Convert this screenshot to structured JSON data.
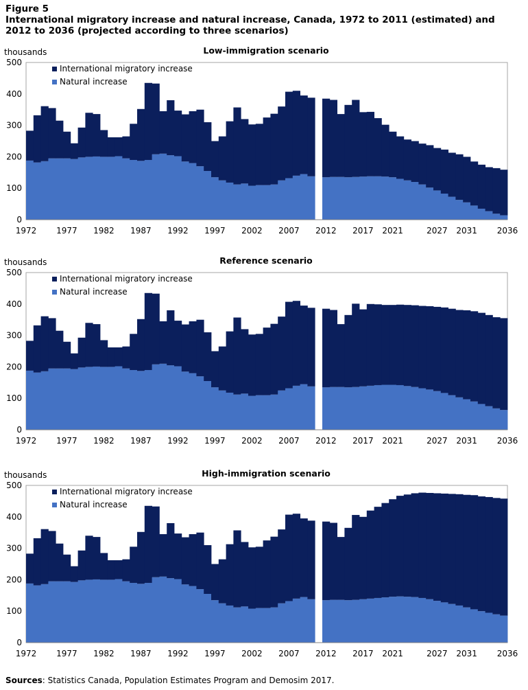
{
  "figure_label": "Figure 5",
  "title": "International migratory increase and natural increase, Canada, 1972 to 2011 (estimated) and 2012 to 2036 (projected according to three scenarios)",
  "source_label": "Sources",
  "source_text": ": Statistics Canada, Population Estimates Program and Demosim 2017.",
  "colors": {
    "natural": "#4472c4",
    "migratory": "#0b1f5c",
    "plot_border": "#a6a6a6",
    "gridline": "#d9d9d9"
  },
  "chart_data": [
    {
      "type": "area",
      "title": "Low-immigration scenario",
      "ylabel": "thousands",
      "ylim": [
        0,
        500
      ],
      "yticks": [
        0,
        100,
        200,
        300,
        400,
        500
      ],
      "xticks": [
        "1972",
        "1977",
        "1982",
        "1987",
        "1992",
        "1997",
        "2002",
        "2007",
        "2012",
        "2017",
        "2021",
        "2027",
        "2031",
        "2036"
      ],
      "legend_position": "top-left",
      "gap_after_year": 2011,
      "x": [
        1972,
        1973,
        1974,
        1975,
        1976,
        1977,
        1978,
        1979,
        1980,
        1981,
        1982,
        1983,
        1984,
        1985,
        1986,
        1987,
        1988,
        1989,
        1990,
        1991,
        1992,
        1993,
        1994,
        1995,
        1996,
        1997,
        1998,
        1999,
        2000,
        2001,
        2002,
        2003,
        2004,
        2005,
        2006,
        2007,
        2008,
        2009,
        2010,
        2011,
        2012,
        2013,
        2014,
        2015,
        2016,
        2017,
        2018,
        2019,
        2020,
        2021,
        2022,
        2023,
        2024,
        2025,
        2026,
        2027,
        2028,
        2029,
        2030,
        2031,
        2032,
        2033,
        2034,
        2035,
        2036
      ],
      "series": [
        {
          "name": "International migratory increase",
          "values": [
            95,
            150,
            175,
            160,
            120,
            85,
            50,
            95,
            140,
            135,
            85,
            62,
            60,
            70,
            115,
            165,
            245,
            225,
            135,
            175,
            145,
            150,
            165,
            180,
            155,
            115,
            140,
            195,
            245,
            205,
            195,
            195,
            215,
            225,
            235,
            275,
            270,
            250,
            250,
            null,
            250,
            245,
            200,
            230,
            245,
            205,
            205,
            185,
            165,
            145,
            135,
            130,
            130,
            130,
            135,
            135,
            140,
            140,
            145,
            145,
            140,
            140,
            140,
            145,
            145
          ]
        },
        {
          "name": "Natural increase",
          "values": [
            188,
            182,
            186,
            195,
            195,
            195,
            193,
            198,
            200,
            201,
            200,
            200,
            202,
            195,
            190,
            187,
            190,
            208,
            210,
            205,
            202,
            185,
            180,
            170,
            155,
            135,
            125,
            118,
            112,
            115,
            108,
            110,
            110,
            112,
            125,
            132,
            140,
            145,
            138,
            null,
            135,
            136,
            136,
            135,
            136,
            137,
            138,
            138,
            137,
            135,
            130,
            125,
            120,
            112,
            102,
            93,
            83,
            73,
            63,
            55,
            45,
            35,
            27,
            19,
            14
          ]
        }
      ]
    },
    {
      "type": "area",
      "title": "Reference scenario",
      "ylabel": "thousands",
      "ylim": [
        0,
        500
      ],
      "yticks": [
        0,
        100,
        200,
        300,
        400,
        500
      ],
      "xticks": [
        "1972",
        "1977",
        "1982",
        "1987",
        "1992",
        "1997",
        "2002",
        "2007",
        "2012",
        "2017",
        "2021",
        "2027",
        "2031",
        "2036"
      ],
      "legend_position": "top-left",
      "gap_after_year": 2011,
      "x": [
        1972,
        1973,
        1974,
        1975,
        1976,
        1977,
        1978,
        1979,
        1980,
        1981,
        1982,
        1983,
        1984,
        1985,
        1986,
        1987,
        1988,
        1989,
        1990,
        1991,
        1992,
        1993,
        1994,
        1995,
        1996,
        1997,
        1998,
        1999,
        2000,
        2001,
        2002,
        2003,
        2004,
        2005,
        2006,
        2007,
        2008,
        2009,
        2010,
        2011,
        2012,
        2013,
        2014,
        2015,
        2016,
        2017,
        2018,
        2019,
        2020,
        2021,
        2022,
        2023,
        2024,
        2025,
        2026,
        2027,
        2028,
        2029,
        2030,
        2031,
        2032,
        2033,
        2034,
        2035,
        2036
      ],
      "series": [
        {
          "name": "International migratory increase",
          "values": [
            95,
            150,
            175,
            160,
            120,
            85,
            50,
            95,
            140,
            135,
            85,
            62,
            60,
            70,
            115,
            165,
            245,
            225,
            135,
            175,
            145,
            150,
            165,
            180,
            155,
            115,
            140,
            195,
            245,
            205,
            195,
            195,
            215,
            225,
            235,
            275,
            270,
            250,
            250,
            null,
            250,
            245,
            200,
            230,
            265,
            245,
            260,
            257,
            254,
            254,
            256,
            258,
            260,
            262,
            265,
            268,
            272,
            275,
            278,
            283,
            287,
            290,
            290,
            290,
            292
          ]
        },
        {
          "name": "Natural increase",
          "values": [
            188,
            182,
            186,
            195,
            195,
            195,
            193,
            198,
            200,
            201,
            200,
            200,
            202,
            195,
            190,
            187,
            190,
            208,
            210,
            205,
            202,
            185,
            180,
            170,
            155,
            135,
            125,
            118,
            112,
            115,
            108,
            110,
            110,
            112,
            125,
            132,
            140,
            145,
            138,
            null,
            135,
            136,
            136,
            135,
            136,
            138,
            140,
            142,
            143,
            143,
            142,
            139,
            136,
            132,
            128,
            123,
            117,
            110,
            103,
            97,
            90,
            82,
            75,
            68,
            63
          ]
        }
      ]
    },
    {
      "type": "area",
      "title": "High-immigration scenario",
      "ylabel": "thousands",
      "ylim": [
        0,
        500
      ],
      "yticks": [
        0,
        100,
        200,
        300,
        400,
        500
      ],
      "xticks": [
        "1972",
        "1977",
        "1982",
        "1987",
        "1992",
        "1997",
        "2002",
        "2007",
        "2012",
        "2017",
        "2021",
        "2027",
        "2031",
        "2036"
      ],
      "legend_position": "top-left",
      "gap_after_year": 2011,
      "x": [
        1972,
        1973,
        1974,
        1975,
        1976,
        1977,
        1978,
        1979,
        1980,
        1981,
        1982,
        1983,
        1984,
        1985,
        1986,
        1987,
        1988,
        1989,
        1990,
        1991,
        1992,
        1993,
        1994,
        1995,
        1996,
        1997,
        1998,
        1999,
        2000,
        2001,
        2002,
        2003,
        2004,
        2005,
        2006,
        2007,
        2008,
        2009,
        2010,
        2011,
        2012,
        2013,
        2014,
        2015,
        2016,
        2017,
        2018,
        2019,
        2020,
        2021,
        2022,
        2023,
        2024,
        2025,
        2026,
        2027,
        2028,
        2029,
        2030,
        2031,
        2032,
        2033,
        2034,
        2035,
        2036
      ],
      "series": [
        {
          "name": "International migratory increase",
          "values": [
            95,
            150,
            175,
            160,
            120,
            85,
            50,
            95,
            140,
            135,
            85,
            62,
            60,
            70,
            115,
            165,
            245,
            225,
            135,
            175,
            145,
            150,
            165,
            180,
            155,
            115,
            140,
            195,
            245,
            205,
            195,
            195,
            215,
            225,
            235,
            275,
            270,
            250,
            250,
            null,
            250,
            245,
            200,
            230,
            270,
            262,
            280,
            290,
            300,
            310,
            320,
            325,
            330,
            335,
            338,
            342,
            346,
            350,
            354,
            358,
            363,
            365,
            368,
            370,
            372
          ]
        },
        {
          "name": "Natural increase",
          "values": [
            188,
            182,
            186,
            195,
            195,
            195,
            193,
            198,
            200,
            201,
            200,
            200,
            202,
            195,
            190,
            187,
            190,
            208,
            210,
            205,
            202,
            185,
            180,
            170,
            155,
            135,
            125,
            118,
            112,
            115,
            108,
            110,
            110,
            112,
            125,
            132,
            140,
            145,
            138,
            null,
            135,
            136,
            136,
            135,
            136,
            138,
            140,
            142,
            144,
            146,
            147,
            146,
            145,
            142,
            138,
            133,
            128,
            123,
            118,
            112,
            106,
            100,
            95,
            90,
            86
          ]
        }
      ]
    }
  ]
}
